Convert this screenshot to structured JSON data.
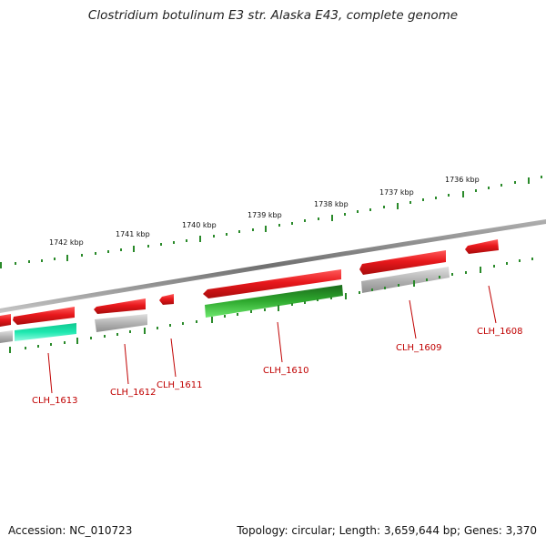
{
  "title": "Clostridium botulinum E3 str. Alaska E43, complete genome",
  "footer": {
    "accession": "Accession: NC_010723",
    "summary": "Topology: circular; Length: 3,659,644 bp; Genes: 3,370"
  },
  "colors": {
    "cds_forward": "#e8181c",
    "cds_reverse": "#a8a8a8",
    "rrna": "#2faa2f",
    "trna": "#1fe8b0",
    "tick": "#2a8a2a",
    "backbone": "#8a8a8a",
    "label": "#c00000"
  },
  "kbp_labels": [
    "1742 kbp",
    "1741 kbp",
    "1740 kbp",
    "1739 kbp",
    "1738 kbp",
    "1737 kbp",
    "1736 kbp"
  ],
  "gene_labels": [
    "CLH_1613",
    "CLH_1612",
    "CLH_1611",
    "CLH_1610",
    "CLH_1609",
    "CLH_1608"
  ]
}
